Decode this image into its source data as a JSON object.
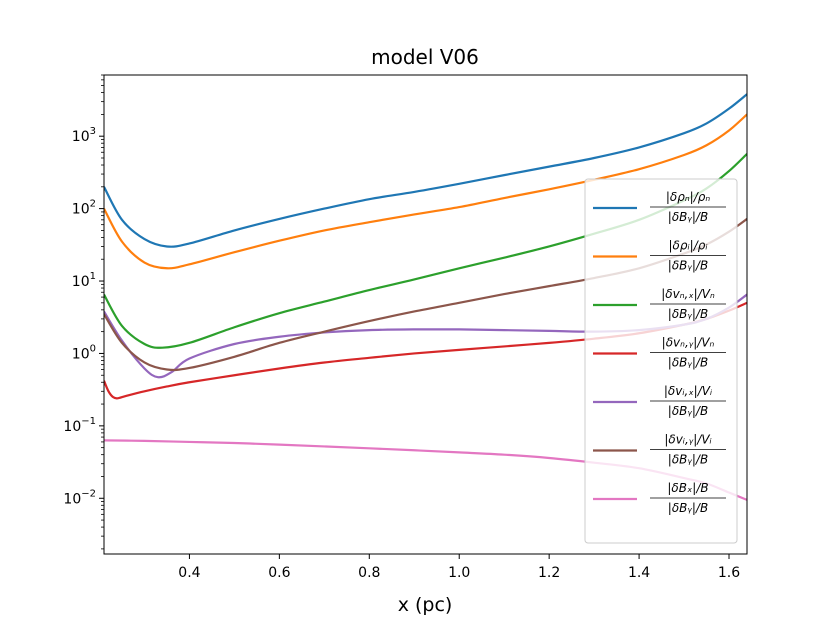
{
  "chart_data": {
    "type": "line",
    "title": "model V06",
    "xlabel": "x (pc)",
    "ylabel": "",
    "yscale": "log",
    "xlim": [
      0.21,
      1.64
    ],
    "ylim": [
      0.0017,
      7000
    ],
    "xticks": [
      0.4,
      0.6,
      0.8,
      1.0,
      1.2,
      1.4,
      1.6
    ],
    "xtick_labels": [
      "0.4",
      "0.6",
      "0.8",
      "1.0",
      "1.2",
      "1.4",
      "1.6"
    ],
    "yticks": [
      {
        "value": 0.01,
        "base": "10",
        "exp": "−2"
      },
      {
        "value": 0.1,
        "base": "10",
        "exp": "−1"
      },
      {
        "value": 1,
        "base": "10",
        "exp": "0"
      },
      {
        "value": 10,
        "base": "10",
        "exp": "1"
      },
      {
        "value": 100,
        "base": "10",
        "exp": "2"
      },
      {
        "value": 1000,
        "base": "10",
        "exp": "3"
      }
    ],
    "legend_position": "center-right",
    "series": [
      {
        "name": "|δρn|/ρn / |δBy|/B",
        "color": "#1f77b4",
        "legend_num": "|δρₙ|/ρₙ",
        "legend_den": "|δBᵧ|/B",
        "x": [
          0.21,
          0.25,
          0.3,
          0.35,
          0.4,
          0.5,
          0.6,
          0.7,
          0.8,
          0.9,
          1.0,
          1.1,
          1.2,
          1.3,
          1.4,
          1.5,
          1.55,
          1.6,
          1.64
        ],
        "y": [
          200,
          70,
          38,
          30,
          33,
          50,
          72,
          100,
          135,
          170,
          220,
          290,
          380,
          500,
          700,
          1100,
          1500,
          2400,
          3800
        ]
      },
      {
        "name": "|δρi|/ρi / |δBy|/B",
        "color": "#ff7f0e",
        "legend_num": "|δρᵢ|/ρᵢ",
        "legend_den": "|δBᵧ|/B",
        "x": [
          0.21,
          0.25,
          0.3,
          0.35,
          0.4,
          0.5,
          0.6,
          0.7,
          0.8,
          0.9,
          1.0,
          1.1,
          1.2,
          1.3,
          1.4,
          1.5,
          1.55,
          1.6,
          1.64
        ],
        "y": [
          100,
          35,
          18,
          15,
          17,
          25,
          36,
          50,
          65,
          83,
          105,
          140,
          185,
          250,
          350,
          550,
          750,
          1200,
          2000
        ]
      },
      {
        "name": "|δvn,x|/Vn / |δBy|/B",
        "color": "#2ca02c",
        "legend_num": "|δvₙ,ₓ|/Vₙ",
        "legend_den": "|δBᵧ|/B",
        "x": [
          0.21,
          0.25,
          0.3,
          0.34,
          0.4,
          0.5,
          0.6,
          0.7,
          0.8,
          0.9,
          1.0,
          1.1,
          1.2,
          1.3,
          1.4,
          1.5,
          1.55,
          1.6,
          1.64
        ],
        "y": [
          6.5,
          2.4,
          1.35,
          1.2,
          1.4,
          2.3,
          3.6,
          5.2,
          7.5,
          10.5,
          15,
          21,
          30,
          45,
          70,
          130,
          190,
          330,
          570
        ]
      },
      {
        "name": "|δvn,y|/Vn / |δBy|/B",
        "color": "#d62728",
        "legend_num": "|δvₙ,ᵧ|/Vₙ",
        "legend_den": "|δBᵧ|/B",
        "x": [
          0.21,
          0.22,
          0.23,
          0.24,
          0.26,
          0.3,
          0.35,
          0.4,
          0.5,
          0.6,
          0.7,
          0.8,
          0.9,
          1.0,
          1.1,
          1.2,
          1.3,
          1.4,
          1.5,
          1.55,
          1.6,
          1.64
        ],
        "y": [
          0.42,
          0.3,
          0.25,
          0.24,
          0.26,
          0.3,
          0.35,
          0.4,
          0.5,
          0.62,
          0.75,
          0.87,
          1.0,
          1.12,
          1.25,
          1.4,
          1.6,
          1.9,
          2.5,
          3.0,
          3.9,
          5.0
        ]
      },
      {
        "name": "|δvi,x|/Vi / |δBy|/B",
        "color": "#9467bd",
        "legend_num": "|δvᵢ,ₓ|/Vᵢ",
        "legend_den": "|δBᵧ|/B",
        "x": [
          0.21,
          0.25,
          0.3,
          0.33,
          0.36,
          0.4,
          0.5,
          0.6,
          0.7,
          0.8,
          0.9,
          1.0,
          1.1,
          1.2,
          1.3,
          1.4,
          1.5,
          1.55,
          1.6,
          1.64
        ],
        "y": [
          3.8,
          1.5,
          0.62,
          0.47,
          0.55,
          0.85,
          1.35,
          1.7,
          1.95,
          2.1,
          2.15,
          2.15,
          2.1,
          2.05,
          2.0,
          2.1,
          2.5,
          3.0,
          4.3,
          6.5
        ]
      },
      {
        "name": "|δvi,y|/Vi / |δBy|/B",
        "color": "#8c564b",
        "legend_num": "|δvᵢ,ᵧ|/Vᵢ",
        "legend_den": "|δBᵧ|/B",
        "x": [
          0.21,
          0.25,
          0.3,
          0.35,
          0.4,
          0.5,
          0.6,
          0.7,
          0.8,
          0.9,
          1.0,
          1.1,
          1.2,
          1.3,
          1.4,
          1.5,
          1.55,
          1.6,
          1.64
        ],
        "y": [
          3.5,
          1.4,
          0.75,
          0.6,
          0.63,
          0.9,
          1.4,
          2.0,
          2.8,
          3.8,
          5.0,
          6.6,
          8.5,
          11,
          15,
          24,
          32,
          48,
          72
        ]
      },
      {
        "name": "|δBx|/B / |δBy|/B",
        "color": "#e377c2",
        "legend_num": "|δBₓ|/B",
        "legend_den": "|δBᵧ|/B",
        "x": [
          0.21,
          0.3,
          0.4,
          0.5,
          0.6,
          0.7,
          0.8,
          0.9,
          1.0,
          1.1,
          1.2,
          1.3,
          1.4,
          1.5,
          1.55,
          1.6,
          1.64
        ],
        "y": [
          0.063,
          0.062,
          0.06,
          0.058,
          0.055,
          0.052,
          0.049,
          0.046,
          0.043,
          0.04,
          0.036,
          0.031,
          0.026,
          0.019,
          0.016,
          0.012,
          0.0095
        ]
      }
    ]
  }
}
